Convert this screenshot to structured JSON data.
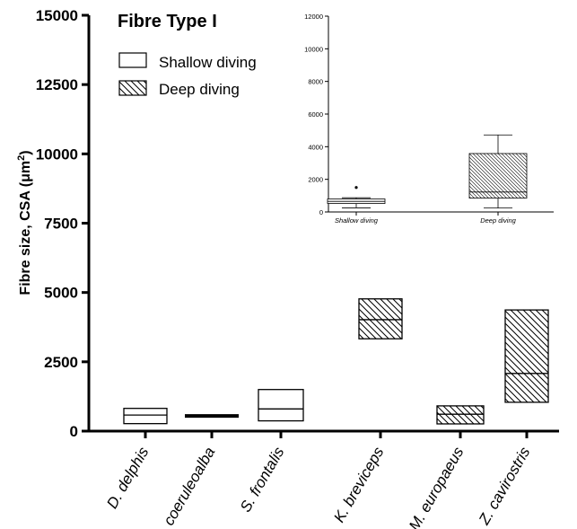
{
  "chart_data": [
    {
      "type": "box",
      "title": "Fibre Type I",
      "ylabel_main": "Fibre size, CSA (μm",
      "ylabel_sup": "2",
      "ylabel_close": ")",
      "ylim": [
        0,
        15000
      ],
      "yticks": [
        0,
        2500,
        5000,
        7500,
        10000,
        12500,
        15000
      ],
      "legend": {
        "position": "top-left",
        "entries": [
          {
            "label": "Shallow diving",
            "pattern": "none"
          },
          {
            "label": "Deep diving",
            "pattern": "hatch"
          }
        ]
      },
      "categories": [
        "D. delphis",
        "S. coeruleoalba",
        "S. frontalis",
        "K. breviceps",
        "M. europaeus",
        "Z. cavirostris"
      ],
      "boxes": [
        {
          "category": "D. delphis",
          "group": "Shallow diving",
          "q1": 270,
          "median": 580,
          "q3": 820
        },
        {
          "category": "S. coeruleoalba",
          "group": "Shallow diving",
          "q1": 520,
          "median": 545,
          "q3": 570
        },
        {
          "category": "S. frontalis",
          "group": "Shallow diving",
          "q1": 370,
          "median": 800,
          "q3": 1500
        },
        {
          "category": "K. breviceps",
          "group": "Deep diving",
          "q1": 3330,
          "median": 4020,
          "q3": 4770
        },
        {
          "category": "M. europaeus",
          "group": "Deep diving",
          "q1": 260,
          "median": 610,
          "q3": 910
        },
        {
          "category": "Z. cavirostris",
          "group": "Deep diving",
          "q1": 1040,
          "median": 2080,
          "q3": 4370
        }
      ]
    },
    {
      "type": "box",
      "ylim": [
        0,
        12000
      ],
      "yticks": [
        0,
        2000,
        4000,
        6000,
        8000,
        10000,
        12000
      ],
      "categories": [
        "Shallow diving",
        "Deep diving"
      ],
      "boxes": [
        {
          "category": "Shallow diving",
          "pattern": "none",
          "min": 250,
          "q1": 520,
          "median": 650,
          "q3": 800,
          "max": 870,
          "outliers": [
            1500
          ]
        },
        {
          "category": "Deep diving",
          "pattern": "hatch",
          "min": 240,
          "q1": 850,
          "median": 1220,
          "q3": 3580,
          "max": 4720
        }
      ]
    }
  ]
}
